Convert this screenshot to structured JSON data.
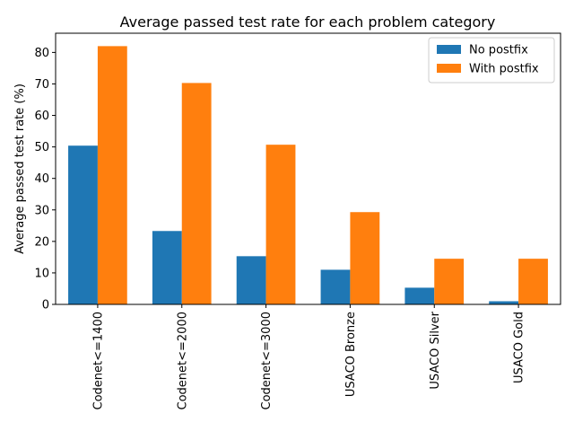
{
  "chart_data": {
    "type": "bar",
    "title": "Average passed test rate for each problem category",
    "xlabel": "",
    "ylabel": "Average passed test rate (%)",
    "categories": [
      "Codenet<=1400",
      "Codenet<=2000",
      "Codenet<=3000",
      "USACO Bronze",
      "USACO Silver",
      "USACO Gold"
    ],
    "series": [
      {
        "name": "No postfix",
        "color": "#1f77b4",
        "values": [
          50.4,
          23.3,
          15.3,
          11.0,
          5.3,
          1.0
        ]
      },
      {
        "name": "With postfix",
        "color": "#ff7f0e",
        "values": [
          82.0,
          70.3,
          50.7,
          29.3,
          14.5,
          14.5
        ]
      }
    ],
    "ylim": [
      0,
      86.1
    ],
    "yticks": [
      0,
      10,
      20,
      30,
      40,
      50,
      60,
      70,
      80
    ],
    "legend_position": "top-right",
    "grid": false
  }
}
